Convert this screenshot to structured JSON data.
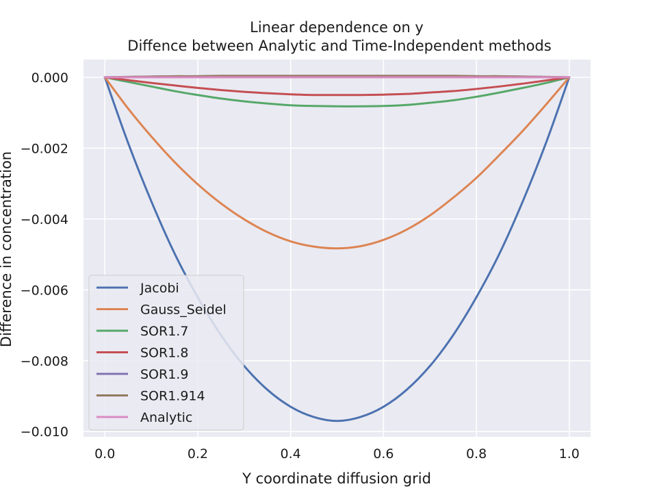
{
  "chart_data": {
    "type": "line",
    "title": "Linear dependence on y",
    "subtitle": "Diffence between Analytic and Time-Independent methods",
    "xlabel": "Y coordinate diffusion grid",
    "ylabel": "Difference in concentration",
    "xlim": [
      -0.046,
      1.046
    ],
    "ylim": [
      -0.01015,
      0.0005
    ],
    "xticks": [
      0.0,
      0.2,
      0.4,
      0.6,
      0.8,
      1.0
    ],
    "xtick_labels": [
      "0.0",
      "0.2",
      "0.4",
      "0.6",
      "0.8",
      "1.0"
    ],
    "yticks": [
      0.0,
      -0.002,
      -0.004,
      -0.006,
      -0.008,
      -0.01
    ],
    "ytick_labels": [
      "0.000",
      "−0.002",
      "−0.004",
      "−0.006",
      "−0.008",
      "−0.010"
    ],
    "grid": true,
    "legend_position": "lower-left",
    "background": "#eaeaf2",
    "x": [
      0.0,
      0.05,
      0.1,
      0.15,
      0.2,
      0.25,
      0.3,
      0.35,
      0.4,
      0.45,
      0.5,
      0.55,
      0.6,
      0.65,
      0.7,
      0.75,
      0.8,
      0.85,
      0.9,
      0.95,
      1.0
    ],
    "series": [
      {
        "name": "Jacobi",
        "color": "#4c72b0",
        "values": [
          0.0,
          -0.00185,
          -0.0035,
          -0.00497,
          -0.00621,
          -0.00728,
          -0.00815,
          -0.00882,
          -0.0093,
          -0.00959,
          -0.0097,
          -0.00959,
          -0.0093,
          -0.00882,
          -0.00815,
          -0.00728,
          -0.00621,
          -0.00497,
          -0.0035,
          -0.00185,
          0.0
        ]
      },
      {
        "name": "Gauss_Seidel",
        "color": "#dd8452",
        "values": [
          0.0,
          -0.00088,
          -0.00167,
          -0.00239,
          -0.00302,
          -0.00356,
          -0.00401,
          -0.00437,
          -0.00463,
          -0.00478,
          -0.00483,
          -0.00477,
          -0.00459,
          -0.0043,
          -0.0039,
          -0.0034,
          -0.00284,
          -0.00219,
          -0.00151,
          -0.00077,
          0.0
        ]
      },
      {
        "name": "SOR1.7",
        "color": "#55a868",
        "values": [
          0.0,
          -0.00013,
          -0.00026,
          -0.00039,
          -0.0005,
          -0.0006,
          -0.00068,
          -0.00074,
          -0.00079,
          -0.00081,
          -0.00082,
          -0.00082,
          -0.00081,
          -0.00078,
          -0.00072,
          -0.00065,
          -0.00055,
          -0.00043,
          -0.0003,
          -0.00016,
          0.0
        ]
      },
      {
        "name": "SOR1.8",
        "color": "#c44e52",
        "values": [
          0.0,
          -8e-05,
          -0.00016,
          -0.00023,
          -0.0003,
          -0.00036,
          -0.00041,
          -0.00045,
          -0.00048,
          -0.0005,
          -0.0005,
          -0.0005,
          -0.00049,
          -0.00047,
          -0.00043,
          -0.00039,
          -0.00033,
          -0.00026,
          -0.00018,
          -9e-05,
          0.0
        ]
      },
      {
        "name": "SOR1.9",
        "color": "#8172b3",
        "values": [
          0.0,
          1e-05,
          2e-05,
          2e-05,
          3e-05,
          3e-05,
          3e-05,
          3e-05,
          3e-05,
          3e-05,
          3e-05,
          3e-05,
          3e-05,
          3e-05,
          3e-05,
          3e-05,
          3e-05,
          2e-05,
          2e-05,
          1e-05,
          0.0
        ]
      },
      {
        "name": "SOR1.914",
        "color": "#937860",
        "values": [
          0.0,
          1e-05,
          2e-05,
          3e-05,
          3e-05,
          4e-05,
          4e-05,
          4e-05,
          4e-05,
          4e-05,
          4e-05,
          4e-05,
          4e-05,
          4e-05,
          4e-05,
          4e-05,
          3e-05,
          3e-05,
          2e-05,
          1e-05,
          0.0
        ]
      },
      {
        "name": "Analytic",
        "color": "#da8bc3",
        "values": [
          0.0,
          0.0,
          0.0,
          0.0,
          0.0,
          0.0,
          0.0,
          0.0,
          0.0,
          0.0,
          0.0,
          0.0,
          0.0,
          0.0,
          0.0,
          0.0,
          0.0,
          0.0,
          0.0,
          0.0,
          0.0
        ]
      }
    ]
  }
}
